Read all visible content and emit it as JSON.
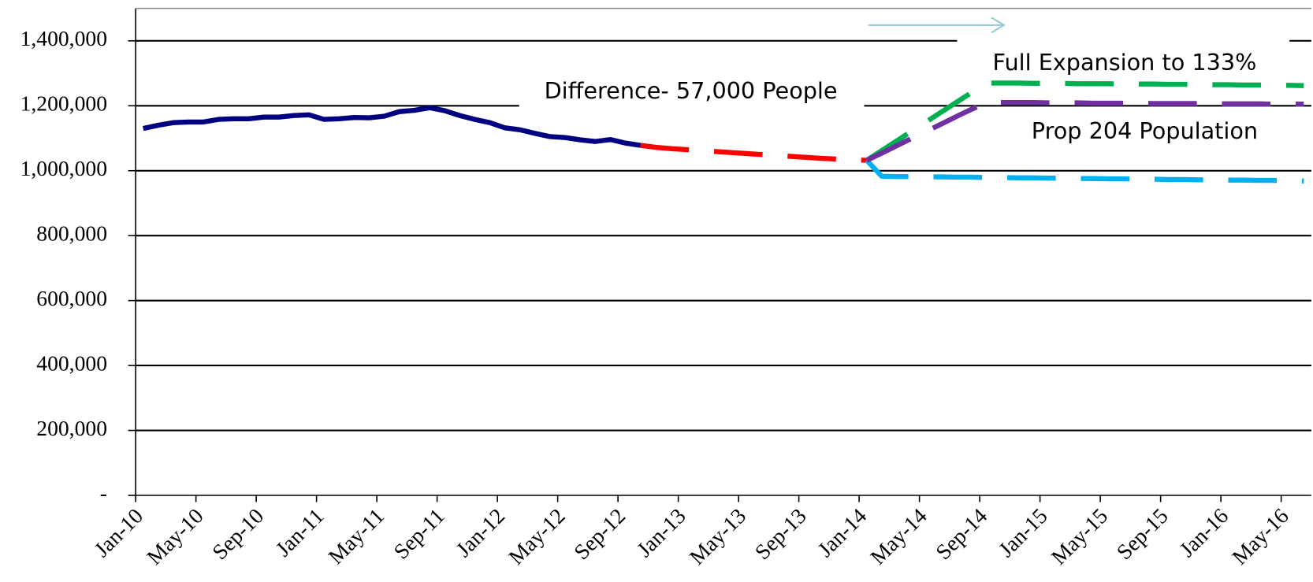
{
  "chart_data": {
    "type": "line",
    "categories": [
      "Jan-10",
      null,
      null,
      null,
      "May-10",
      null,
      null,
      null,
      "Sep-10",
      null,
      null,
      null,
      "Jan-11",
      null,
      null,
      null,
      "May-11",
      null,
      null,
      null,
      "Sep-11",
      null,
      null,
      null,
      "Jan-12",
      null,
      null,
      null,
      "May-12",
      null,
      null,
      null,
      "Sep-12",
      null,
      null,
      null,
      "Jan-13",
      null,
      null,
      null,
      "May-13",
      null,
      null,
      null,
      "Sep-13",
      null,
      null,
      null,
      "Jan-14",
      null,
      null,
      null,
      "May-14",
      null,
      null,
      null,
      "Sep-14",
      null,
      null,
      null,
      "Jan-15",
      null,
      null,
      null,
      "May-15",
      null,
      null,
      null,
      "Sep-15",
      null,
      null,
      null,
      "Jan-16",
      null,
      null,
      null,
      "May-16",
      null
    ],
    "series": [
      {
        "color": "#000080",
        "dashed": false,
        "values": [
          1130000,
          1140000,
          1148000,
          1150000,
          1150000,
          1158000,
          1160000,
          1160000,
          1165000,
          1165000,
          1170000,
          1172000,
          1158000,
          1160000,
          1164000,
          1163000,
          1168000,
          1182000,
          1186000,
          1194000,
          1185000,
          1170000,
          1158000,
          1148000,
          1132000,
          1126000,
          1115000,
          1105000,
          1102000,
          1095000,
          1090000,
          1096000,
          1085000,
          1078000,
          null,
          null,
          null,
          null,
          null,
          null,
          null,
          null,
          null,
          null,
          null,
          null,
          null,
          null,
          null,
          null,
          null,
          null,
          null,
          null,
          null,
          null,
          null,
          null,
          null,
          null,
          null,
          null,
          null,
          null,
          null,
          null,
          null,
          null,
          null,
          null,
          null,
          null,
          null,
          null,
          null,
          null,
          null,
          null
        ]
      },
      {
        "color": "#ff0000",
        "dashed": true,
        "values": [
          null,
          null,
          null,
          null,
          null,
          null,
          null,
          null,
          null,
          null,
          null,
          null,
          null,
          null,
          null,
          null,
          null,
          null,
          null,
          null,
          null,
          null,
          null,
          null,
          null,
          null,
          null,
          null,
          null,
          null,
          null,
          null,
          null,
          1078000,
          1072000,
          1068000,
          1065000,
          1062000,
          1059000,
          1056000,
          1053000,
          1050000,
          1047000,
          1044000,
          1041000,
          1038000,
          1036000,
          1034000,
          1032000,
          null,
          null,
          null,
          null,
          null,
          null,
          null,
          null,
          null,
          null,
          null,
          null,
          null,
          null,
          null,
          null,
          null,
          null,
          null,
          null,
          null,
          null,
          null,
          null,
          null,
          null,
          null,
          null,
          null
        ]
      },
      {
        "color": "#00b0f0",
        "dashed": true,
        "values": [
          null,
          null,
          null,
          null,
          null,
          null,
          null,
          null,
          null,
          null,
          null,
          null,
          null,
          null,
          null,
          null,
          null,
          null,
          null,
          null,
          null,
          null,
          null,
          null,
          null,
          null,
          null,
          null,
          null,
          null,
          null,
          null,
          null,
          null,
          null,
          null,
          null,
          null,
          null,
          null,
          null,
          null,
          null,
          null,
          null,
          null,
          null,
          null,
          1032000,
          983000,
          982000,
          982000,
          981000,
          981000,
          980000,
          980000,
          979000,
          979000,
          978000,
          978000,
          977000,
          977000,
          976000,
          976000,
          975000,
          975000,
          974000,
          974000,
          973000,
          973000,
          972000,
          972000,
          971000,
          971000,
          970000,
          970000,
          969000,
          968000
        ]
      },
      {
        "color": "#00b050",
        "dashed": true,
        "values": [
          null,
          null,
          null,
          null,
          null,
          null,
          null,
          null,
          null,
          null,
          null,
          null,
          null,
          null,
          null,
          null,
          null,
          null,
          null,
          null,
          null,
          null,
          null,
          null,
          null,
          null,
          null,
          null,
          null,
          null,
          null,
          null,
          null,
          null,
          null,
          null,
          null,
          null,
          null,
          null,
          null,
          null,
          null,
          null,
          null,
          null,
          null,
          null,
          1032000,
          1062000,
          1092000,
          1122000,
          1152000,
          1182000,
          1212000,
          1242000,
          1270000,
          1270000,
          1270000,
          1269000,
          1269000,
          1269000,
          1268000,
          1268000,
          1268000,
          1267000,
          1267000,
          1267000,
          1266000,
          1266000,
          1266000,
          1265000,
          1265000,
          1264000,
          1264000,
          1263000,
          1263000,
          1262000
        ]
      },
      {
        "color": "#7030a0",
        "dashed": true,
        "values": [
          null,
          null,
          null,
          null,
          null,
          null,
          null,
          null,
          null,
          null,
          null,
          null,
          null,
          null,
          null,
          null,
          null,
          null,
          null,
          null,
          null,
          null,
          null,
          null,
          null,
          null,
          null,
          null,
          null,
          null,
          null,
          null,
          null,
          null,
          null,
          null,
          null,
          null,
          null,
          null,
          null,
          null,
          null,
          null,
          null,
          null,
          null,
          null,
          1032000,
          1054000,
          1077000,
          1100000,
          1122000,
          1145000,
          1168000,
          1190000,
          1210000,
          1210000,
          1210000,
          1210000,
          1209000,
          1209000,
          1209000,
          1208000,
          1208000,
          1208000,
          1208000,
          1207000,
          1207000,
          1207000,
          1207000,
          1206000,
          1206000,
          1206000,
          1206000,
          1205000,
          1205000,
          1205000
        ]
      }
    ],
    "annotations": [
      "Difference- 57,000 People",
      "Full Expansion to 133%",
      "Prop 204 Population"
    ],
    "ylim": [
      0,
      1500000
    ],
    "yticks": [
      {
        "value": 0,
        "label": "-"
      },
      {
        "value": 200000,
        "label": "200,000"
      },
      {
        "value": 400000,
        "label": "400,000"
      },
      {
        "value": 600000,
        "label": "600,000"
      },
      {
        "value": 800000,
        "label": "800,000"
      },
      {
        "value": 1000000,
        "label": "1,000,000"
      },
      {
        "value": 1200000,
        "label": "1,200,000"
      },
      {
        "value": 1400000,
        "label": "1,400,000"
      }
    ],
    "grid": true
  }
}
